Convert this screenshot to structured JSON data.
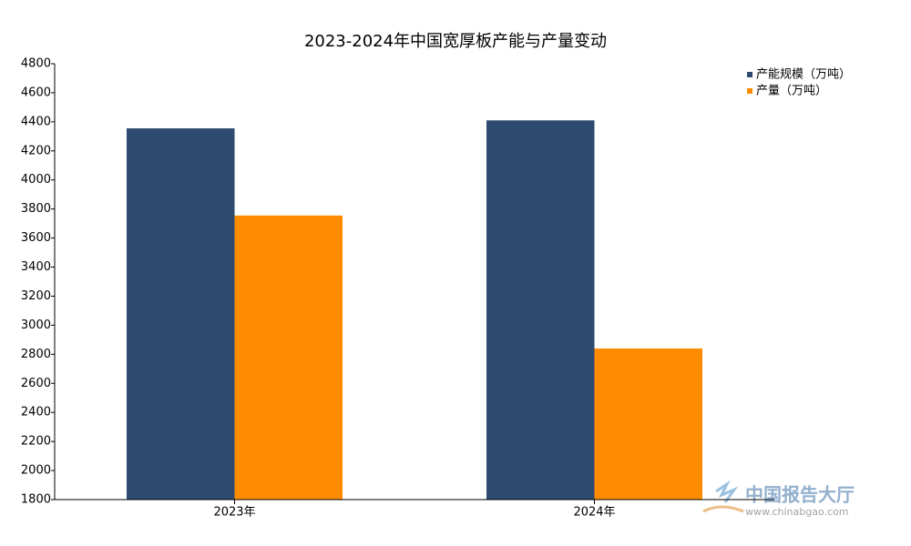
{
  "chart_data": {
    "type": "bar",
    "title": "2023-2024年中国宽厚板产能与产量变动",
    "categories": [
      "2023年",
      "2024年"
    ],
    "series": [
      {
        "name": "产能规模（万吨）",
        "color": "#2e4a6e",
        "values": [
          4355,
          4410
        ]
      },
      {
        "name": "产量（万吨）",
        "color": "#ff8c00",
        "values": [
          3755,
          2840
        ]
      }
    ],
    "ylim": [
      1800,
      4800
    ],
    "yticks": [
      1800,
      2000,
      2200,
      2400,
      2600,
      2800,
      3000,
      3200,
      3400,
      3600,
      3800,
      4000,
      4200,
      4400,
      4600,
      4800
    ],
    "legend": "top-right",
    "grid": false
  },
  "watermark": {
    "name": "中国报告大厅",
    "url": "www.chinabgao.com"
  }
}
